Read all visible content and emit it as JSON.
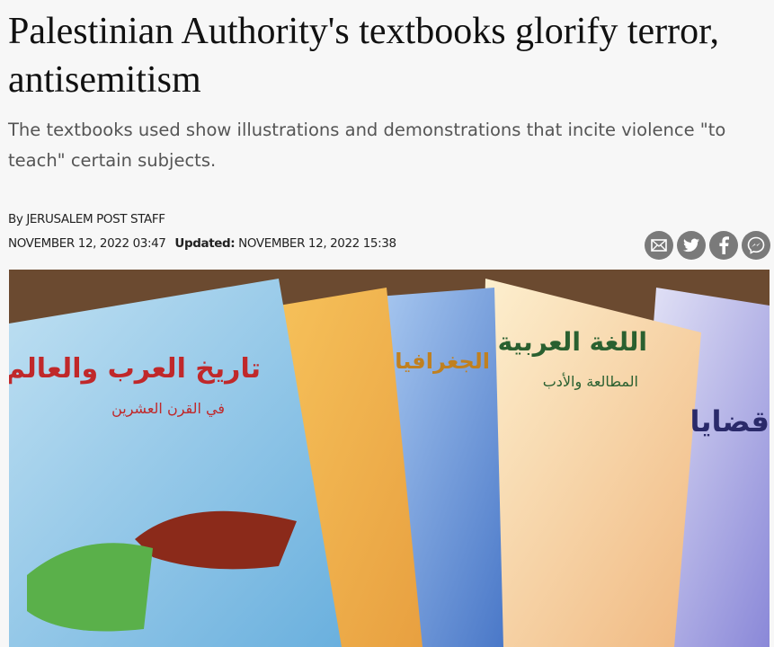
{
  "article": {
    "title": "Palestinian Authority's textbooks glorify terror, antisemitism",
    "subtitle": "The textbooks used show illustrations and demonstrations that incite violence \"to teach\" certain subjects.",
    "byline": "By JERUSALEM POST STAFF",
    "published": "NOVEMBER 12, 2022 03:47",
    "updated_label": "Updated:",
    "updated": "NOVEMBER 12, 2022 15:38"
  },
  "share": {
    "icons": [
      "email-icon",
      "twitter-icon",
      "facebook-icon",
      "messenger-icon"
    ],
    "color": "#7a7a7a"
  },
  "image": {
    "book_titles": [
      "تاريخ العرب والعالم",
      "في القرن العشرين",
      "الجغرافيا",
      "اللغة العربية",
      "المطالعة والأدب",
      "قضايا"
    ]
  }
}
